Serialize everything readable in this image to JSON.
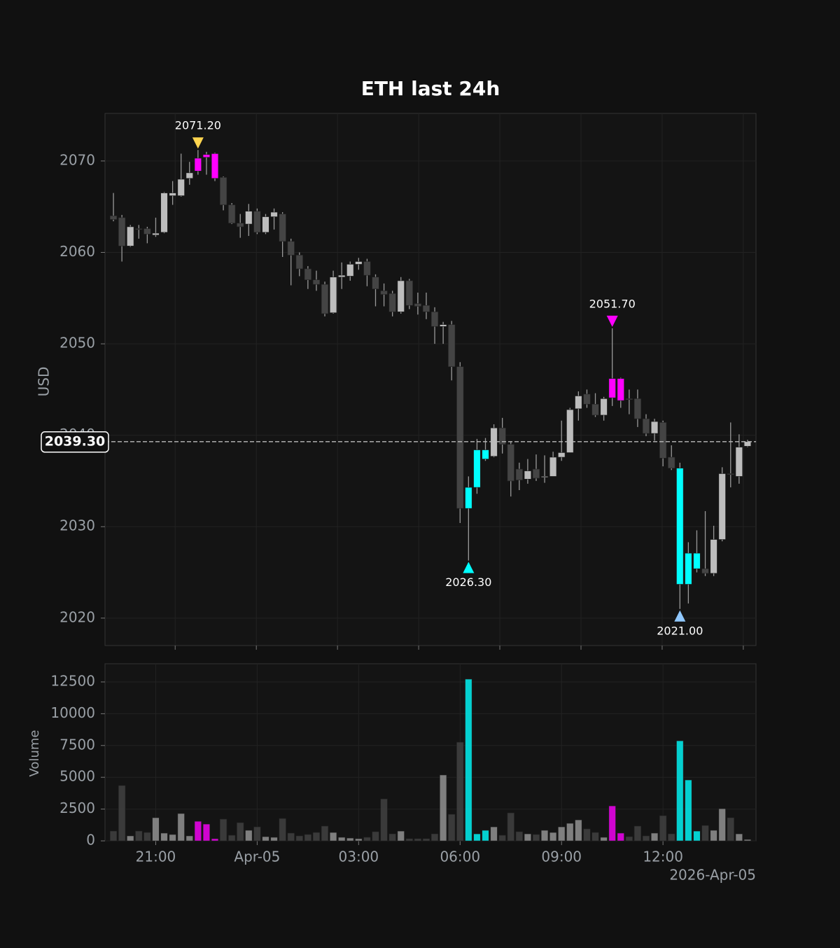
{
  "chart_data": [
    {
      "type": "candlestick",
      "title": "ETH last 24h",
      "y_label": "USD",
      "xlim": [
        -1,
        76
      ],
      "ylim": [
        2017.0,
        2075.2
      ],
      "xticks": [
        7.3,
        16.9,
        26.5,
        36.1,
        45.7,
        55.3,
        64.9,
        74.5
      ],
      "yticks": [
        2020,
        2030,
        2040,
        2050,
        2060,
        2070
      ],
      "grid": true,
      "open": [
        2064.0,
        2063.8,
        2060.7,
        2062.6,
        2062.6,
        2061.9,
        2062.2,
        2066.2,
        2066.2,
        2068.1,
        2068.9,
        2070.4,
        2070.8,
        2068.2,
        2065.2,
        2063.2,
        2063.1,
        2064.5,
        2062.2,
        2063.9,
        2064.2,
        2061.2,
        2059.7,
        2058.2,
        2057.0,
        2056.5,
        2053.4,
        2057.3,
        2057.4,
        2058.7,
        2059.0,
        2057.3,
        2055.8,
        2055.5,
        2053.5,
        2056.9,
        2054.4,
        2054.2,
        2053.5,
        2051.9,
        2052.1,
        2047.5,
        2032.0,
        2034.3,
        2038.4,
        2037.7,
        2040.8,
        2039.0,
        2036.3,
        2035.2,
        2036.3,
        2035.4,
        2035.5,
        2037.6,
        2038.1,
        2042.9,
        2044.5,
        2043.4,
        2042.2,
        2044.1,
        2046.2,
        2044.0,
        2044.0,
        2041.8,
        2040.2,
        2041.4,
        2037.6,
        2036.4,
        2023.7,
        2027.1,
        2025.4,
        2024.9,
        2028.6,
        2035.8,
        2035.5,
        2038.8
      ],
      "high": [
        2066.5,
        2064.1,
        2063.0,
        2063.0,
        2062.8,
        2063.8,
        2066.6,
        2067.8,
        2070.8,
        2069.9,
        2071.2,
        2071.0,
        2070.9,
        2068.3,
        2065.4,
        2064.2,
        2065.3,
        2064.8,
        2064.2,
        2064.8,
        2064.4,
        2061.5,
        2060.0,
        2058.5,
        2058.0,
        2056.8,
        2058.0,
        2058.9,
        2059.0,
        2059.4,
        2059.3,
        2057.6,
        2056.6,
        2055.8,
        2057.3,
        2057.1,
        2055.6,
        2055.6,
        2054.0,
        2052.4,
        2052.5,
        2048.0,
        2035.5,
        2039.6,
        2039.7,
        2041.2,
        2041.9,
        2039.3,
        2037.0,
        2037.4,
        2037.9,
        2037.8,
        2038.2,
        2041.6,
        2043.0,
        2044.8,
        2045.0,
        2044.6,
        2044.2,
        2051.7,
        2046.3,
        2045.0,
        2045.0,
        2042.3,
        2041.8,
        2041.6,
        2038.9,
        2037.0,
        2028.3,
        2029.6,
        2031.7,
        2030.1,
        2036.5,
        2041.4,
        2040.1,
        2039.5
      ],
      "low": [
        2063.4,
        2059.0,
        2060.6,
        2061.5,
        2061.0,
        2061.7,
        2062.1,
        2065.2,
        2066.1,
        2067.4,
        2068.5,
        2068.5,
        2067.8,
        2064.6,
        2063.1,
        2061.6,
        2061.8,
        2062.0,
        2062.0,
        2062.5,
        2059.5,
        2056.4,
        2057.4,
        2056.0,
        2055.8,
        2053.0,
        2053.3,
        2056.0,
        2056.9,
        2058.1,
        2056.3,
        2054.1,
        2054.1,
        2053.0,
        2053.3,
        2053.8,
        2053.2,
        2052.7,
        2050.0,
        2050.0,
        2046.0,
        2030.4,
        2026.3,
        2033.6,
        2037.2,
        2037.6,
        2038.0,
        2033.3,
        2034.0,
        2034.7,
        2035.0,
        2034.8,
        2035.5,
        2037.2,
        2038.1,
        2041.6,
        2043.0,
        2042.0,
        2041.6,
        2043.2,
        2043.0,
        2042.3,
        2040.9,
        2039.9,
        2039.4,
        2036.6,
        2036.2,
        2021.0,
        2021.6,
        2025.0,
        2024.6,
        2024.6,
        2028.4,
        2034.3,
        2034.7,
        2038.7
      ],
      "close": [
        2063.6,
        2060.7,
        2062.8,
        2062.5,
        2062.0,
        2062.1,
        2066.5,
        2066.5,
        2068.0,
        2068.7,
        2070.3,
        2070.7,
        2068.1,
        2065.2,
        2063.2,
        2062.8,
        2064.5,
        2062.2,
        2063.9,
        2064.4,
        2061.2,
        2059.7,
        2058.2,
        2057.0,
        2056.5,
        2053.3,
        2057.3,
        2057.5,
        2058.7,
        2059.0,
        2057.5,
        2056.0,
        2055.4,
        2053.5,
        2056.9,
        2054.2,
        2054.1,
        2053.5,
        2051.9,
        2052.1,
        2047.5,
        2032.0,
        2034.3,
        2038.4,
        2037.4,
        2040.8,
        2039.0,
        2035.0,
        2035.1,
        2036.1,
        2035.3,
        2035.5,
        2037.6,
        2038.1,
        2042.8,
        2044.3,
        2043.4,
        2042.2,
        2044.0,
        2046.2,
        2043.8,
        2043.9,
        2041.8,
        2040.2,
        2041.5,
        2037.5,
        2036.4,
        2023.7,
        2027.1,
        2025.4,
        2024.9,
        2028.6,
        2035.8,
        2035.7,
        2038.7,
        2039.3
      ],
      "colors": [
        "#444",
        "#444",
        "#bdbdbd",
        "#444",
        "#444",
        "#bdbdbd",
        "#bdbdbd",
        "#bdbdbd",
        "#bdbdbd",
        "#bdbdbd",
        "#ff00ff",
        "#ff00ff",
        "#ff00ff",
        "#444",
        "#444",
        "#444",
        "#bdbdbd",
        "#444",
        "#bdbdbd",
        "#bdbdbd",
        "#444",
        "#444",
        "#444",
        "#444",
        "#444",
        "#444",
        "#bdbdbd",
        "#bdbdbd",
        "#bdbdbd",
        "#bdbdbd",
        "#444",
        "#444",
        "#444",
        "#444",
        "#bdbdbd",
        "#444",
        "#444",
        "#444",
        "#444",
        "#bdbdbd",
        "#444",
        "#444",
        "#00ffff",
        "#00ffff",
        "#00ffff",
        "#bdbdbd",
        "#444",
        "#444",
        "#444",
        "#bdbdbd",
        "#444",
        "#bdbdbd",
        "#bdbdbd",
        "#bdbdbd",
        "#bdbdbd",
        "#bdbdbd",
        "#444",
        "#444",
        "#bdbdbd",
        "#ff00ff",
        "#ff00ff",
        "#444",
        "#444",
        "#444",
        "#bdbdbd",
        "#444",
        "#444",
        "#00ffff",
        "#00ffff",
        "#00ffff",
        "#444",
        "#bdbdbd",
        "#bdbdbd",
        "#444",
        "#bdbdbd",
        "#bdbdbd"
      ],
      "markers": [
        {
          "x": 10,
          "value": 2071.2,
          "label": "2071.20",
          "direction": "down",
          "color": "#ffd54f"
        },
        {
          "x": 42,
          "value": 2026.3,
          "label": "2026.30",
          "direction": "up",
          "color": "#00ffff"
        },
        {
          "x": 59,
          "value": 2051.7,
          "label": "2051.70",
          "direction": "down",
          "color": "#ff00ff"
        },
        {
          "x": 67,
          "value": 2021.0,
          "label": "2021.00",
          "direction": "up",
          "color": "#90c8ff"
        }
      ],
      "last_price": {
        "value": 2039.3,
        "label": "2039.30"
      }
    },
    {
      "type": "bar",
      "y_label": "Volume",
      "x_corner_label": "2026-Apr-05",
      "xlim": [
        -1,
        76
      ],
      "ylim": [
        0,
        13930
      ],
      "xticks": [
        {
          "value": 5,
          "label": "21:00"
        },
        {
          "value": 17,
          "label": "Apr-05"
        },
        {
          "value": 29,
          "label": "03:00"
        },
        {
          "value": 41,
          "label": "06:00"
        },
        {
          "value": 53,
          "label": "09:00"
        },
        {
          "value": 65,
          "label": "12:00"
        }
      ],
      "yticks": [
        0,
        2500,
        5000,
        7500,
        10000,
        12500
      ],
      "grid": true,
      "values": [
        770,
        4350,
        390,
        770,
        660,
        1820,
        610,
        500,
        2150,
        390,
        1540,
        1320,
        170,
        1710,
        440,
        1430,
        830,
        1100,
        330,
        280,
        1760,
        610,
        390,
        500,
        660,
        1160,
        660,
        280,
        220,
        170,
        280,
        720,
        3300,
        550,
        770,
        170,
        170,
        170,
        550,
        5180,
        2090,
        7760,
        12720,
        550,
        830,
        1100,
        440,
        2200,
        720,
        550,
        500,
        830,
        660,
        1100,
        1380,
        1650,
        940,
        660,
        280,
        2750,
        610,
        330,
        1160,
        390,
        610,
        1980,
        550,
        7870,
        4790,
        770,
        1210,
        830,
        2530,
        1820,
        550,
        110
      ]
    }
  ]
}
